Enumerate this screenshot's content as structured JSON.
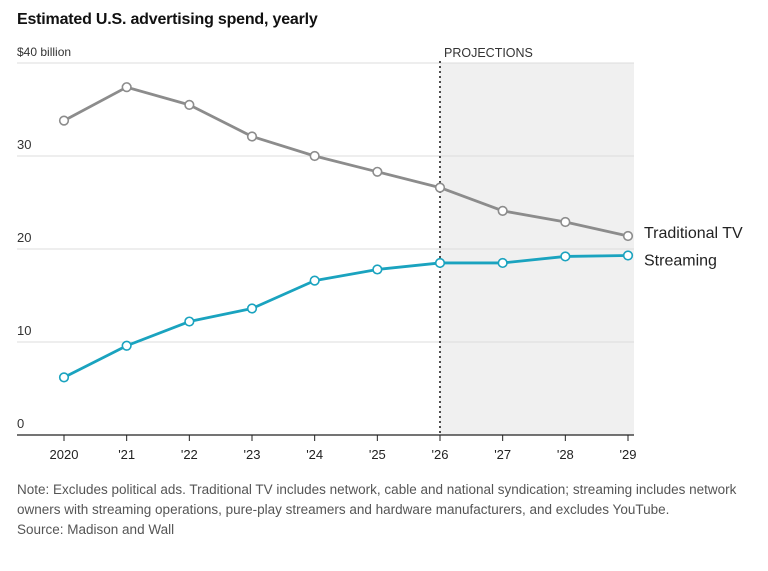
{
  "title": "Estimated U.S. advertising spend, yearly",
  "chart_data": {
    "type": "line",
    "title": "Estimated U.S. advertising spend, yearly",
    "xlabel": "",
    "ylabel": "",
    "categories": [
      "2020",
      "'21",
      "'22",
      "'23",
      "'24",
      "'25",
      "'26",
      "'27",
      "'28",
      "'29"
    ],
    "y_tick_labels": [
      "0",
      "10",
      "20",
      "30",
      "$40 billion"
    ],
    "y_ticks": [
      0,
      10,
      20,
      30,
      40
    ],
    "ylim": [
      0,
      40
    ],
    "grid": true,
    "projection_start": "'26",
    "projection_label": "PROJECTIONS",
    "series": [
      {
        "name": "Traditional TV",
        "color": "#8c8c8c",
        "values": [
          33.8,
          37.4,
          35.5,
          32.1,
          30.0,
          28.3,
          26.6,
          24.1,
          22.9,
          21.4
        ]
      },
      {
        "name": "Streaming",
        "color": "#1aa3bf",
        "values": [
          6.2,
          9.6,
          12.2,
          13.6,
          16.6,
          17.8,
          18.5,
          18.5,
          19.2,
          19.3
        ]
      }
    ]
  },
  "notes": {
    "note": "Note: Excludes political ads. Traditional TV includes network, cable and national syndication; streaming includes network owners with streaming operations, pure-play streamers and hardware manufacturers, and excludes YouTube.",
    "source": "Source: Madison and Wall"
  }
}
